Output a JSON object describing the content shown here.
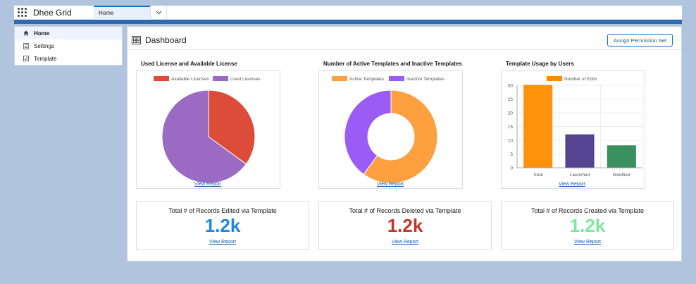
{
  "app": {
    "name": "Dhee Grid"
  },
  "tabs": [
    {
      "label": "Home"
    }
  ],
  "sidebar": {
    "items": [
      {
        "label": "Home",
        "icon": "home-icon"
      },
      {
        "label": "Settings",
        "icon": "settings-icon"
      },
      {
        "label": "Template",
        "icon": "template-icon"
      }
    ]
  },
  "dashboard": {
    "title": "Dashboard",
    "assign_label": "Assign Permission Set",
    "view_report_label": "View Report"
  },
  "colors": {
    "available": "#dd4b39",
    "used": "#9b6bc4",
    "active": "#ffa040",
    "inactive": "#9a5cf5",
    "edits_total": "#ff8c00",
    "edits_launched": "#4b3a8c",
    "edits_modified": "#2e8b57",
    "stat_edited": "#1e88e5",
    "stat_deleted": "#c0392b",
    "stat_created": "#7ee8a0"
  },
  "chart_data": [
    {
      "type": "pie",
      "title": "Used License and Available License",
      "categories": [
        "Available Licenses",
        "Used Licenses"
      ],
      "values": [
        35,
        65
      ]
    },
    {
      "type": "pie",
      "title": "Number of Active Templates and Inactive Templates",
      "categories": [
        "Active Templates",
        "Inactive Templates"
      ],
      "values": [
        60,
        40
      ]
    },
    {
      "type": "bar",
      "title": "Template Usage by Users",
      "categories": [
        "Total",
        "Launched",
        "Modified"
      ],
      "series": [
        {
          "name": "Number of Edits",
          "values": [
            30,
            12,
            8
          ]
        }
      ],
      "ylim": [
        0,
        30
      ],
      "yticks": [
        "0",
        "5",
        "10",
        "15",
        "20",
        "25",
        "30"
      ],
      "grid": true,
      "legend": "top"
    }
  ],
  "stats": [
    {
      "label": "Total # of Records Edited via Template",
      "value": "1.2k"
    },
    {
      "label": "Total # of Records Deleted via Template",
      "value": "1.2k"
    },
    {
      "label": "Total # of Records Created via Template",
      "value": "1.2k"
    }
  ]
}
